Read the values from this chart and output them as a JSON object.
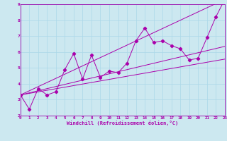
{
  "xlabel": "Windchill (Refroidissement éolien,°C)",
  "xlim": [
    0,
    23
  ],
  "ylim": [
    2,
    9
  ],
  "xticks": [
    0,
    1,
    2,
    3,
    4,
    5,
    6,
    7,
    8,
    9,
    10,
    11,
    12,
    13,
    14,
    15,
    16,
    17,
    18,
    19,
    20,
    21,
    22,
    23
  ],
  "yticks": [
    2,
    3,
    4,
    5,
    6,
    7,
    8,
    9
  ],
  "bg_color": "#cce8f0",
  "line_color": "#aa00aa",
  "main_x": [
    0,
    1,
    2,
    3,
    4,
    5,
    6,
    7,
    8,
    9,
    10,
    11,
    12,
    13,
    14,
    15,
    16,
    17,
    18,
    19,
    20,
    21,
    22,
    23
  ],
  "main_y": [
    3.3,
    2.4,
    3.7,
    3.3,
    3.5,
    4.9,
    5.9,
    4.3,
    5.8,
    4.4,
    4.8,
    4.7,
    5.3,
    6.7,
    7.5,
    6.6,
    6.7,
    6.4,
    6.2,
    5.5,
    5.6,
    6.9,
    8.2,
    9.3
  ],
  "trend_lines": [
    {
      "x": [
        0,
        23
      ],
      "y": [
        3.3,
        5.55
      ]
    },
    {
      "x": [
        0,
        23
      ],
      "y": [
        3.3,
        6.35
      ]
    },
    {
      "x": [
        0,
        23
      ],
      "y": [
        3.3,
        9.3
      ]
    }
  ],
  "grid_color": "#aad8e8",
  "spine_color": "#9900aa",
  "tick_fontsize": 4.2,
  "xlabel_fontsize": 5.0
}
